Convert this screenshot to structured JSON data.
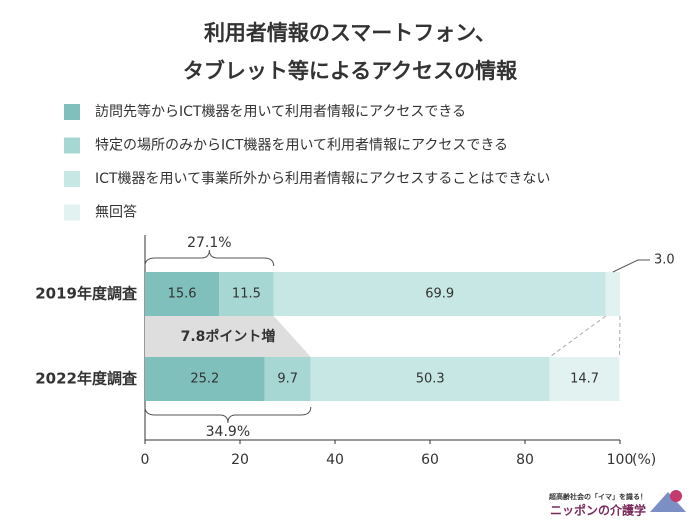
{
  "chart_data": {
    "type": "stacked-bar-horizontal",
    "title": [
      "利用者情報のスマートフォン、",
      "タブレット等によるアクセスの情報"
    ],
    "categories": [
      "2019年度調査",
      "2022年度調査"
    ],
    "series": [
      {
        "name": "訪問先等からICT機器を用いて利用者情報にアクセスできる",
        "color": "#7fc0bc",
        "values": [
          15.6,
          25.2
        ]
      },
      {
        "name": "特定の場所のみからICT機器を用いて利用者情報にアクセスできる",
        "color": "#a7d7d3",
        "values": [
          11.5,
          9.7
        ]
      },
      {
        "name": "ICT機器を用いて事業所外から利用者情報にアクセスすることはできない",
        "color": "#c6e7e4",
        "values": [
          69.9,
          50.3
        ]
      },
      {
        "name": "無回答",
        "color": "#e2f2f0",
        "values": [
          3.0,
          14.7
        ],
        "value_labels": [
          "3.0",
          "14.7"
        ]
      }
    ],
    "xlim": [
      0,
      100
    ],
    "xticks": [
      0,
      20,
      40,
      60,
      80,
      100
    ],
    "x_unit": "(%)",
    "annotations": [
      "27.1%",
      "34.9%",
      "7.8ポイント増"
    ],
    "logo": [
      "超高齢社会の「イマ」を識る！",
      "ニッポンの介護学"
    ]
  }
}
